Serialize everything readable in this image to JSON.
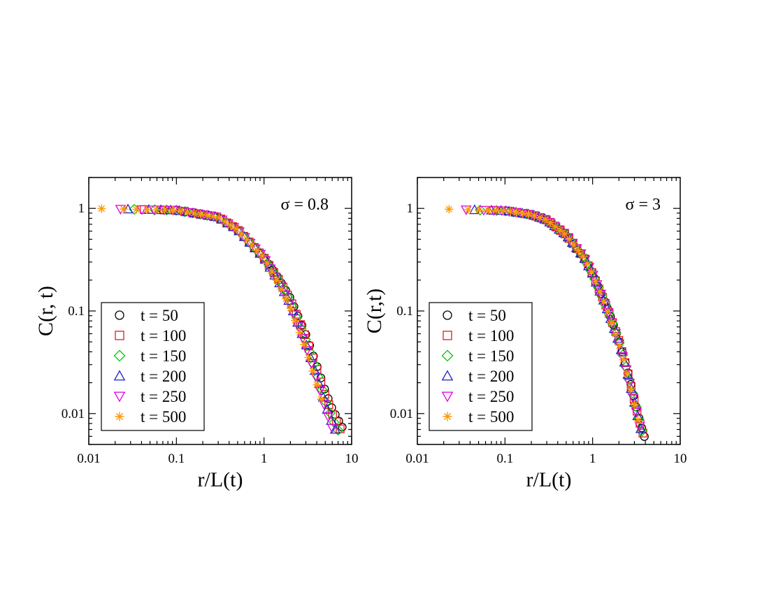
{
  "figure": {
    "panels_count": 2
  },
  "colors": {
    "t50": "#000000",
    "t100": "#e41a1c",
    "t150": "#00cc00",
    "t200": "#1f1fcc",
    "t250": "#e000e0",
    "t500": "#ff9900"
  },
  "chart_data": [
    {
      "type": "scatter",
      "title": "",
      "annotation": "σ = 0.8",
      "xlabel": "r/L(t)",
      "ylabel": "C(r, t)",
      "xscale": "log",
      "yscale": "log",
      "xlim": [
        0.01,
        10
      ],
      "ylim": [
        0.005,
        2
      ],
      "xticks": [
        {
          "value": 0.01,
          "label": "0.01"
        },
        {
          "value": 0.1,
          "label": "0.1"
        },
        {
          "value": 1,
          "label": "1"
        },
        {
          "value": 10,
          "label": "10"
        }
      ],
      "yticks": [
        {
          "value": 0.01,
          "label": "0.01"
        },
        {
          "value": 0.1,
          "label": "0.1"
        },
        {
          "value": 1,
          "label": "1"
        }
      ],
      "legend_position": "bottom-left",
      "series": [
        {
          "name": "t = 50",
          "marker": "circle",
          "color_key": "t50",
          "x0": 0.07,
          "x_end": 7.8
        },
        {
          "name": "t = 100",
          "marker": "square",
          "color_key": "t100",
          "x0": 0.043,
          "x_end": 7.4
        },
        {
          "name": "t = 150",
          "marker": "diamond",
          "color_key": "t150",
          "x0": 0.033,
          "x_end": 7.0
        },
        {
          "name": "t = 200",
          "marker": "triangle-up",
          "color_key": "t200",
          "x0": 0.028,
          "x_end": 6.5
        },
        {
          "name": "t = 250",
          "marker": "triangle-down",
          "color_key": "t250",
          "x0": 0.023,
          "x_end": 6.0
        },
        {
          "name": "t = 500",
          "marker": "star",
          "color_key": "t500",
          "x0": 0.014,
          "x_end": 4.5
        }
      ],
      "scaling_curve": {
        "x": [
          0.01,
          0.1,
          0.3,
          0.5,
          1.0,
          1.5,
          2.0,
          3.0,
          4.0,
          5.0,
          6.0,
          7.0,
          8.0
        ],
        "y": [
          1.0,
          0.96,
          0.82,
          0.62,
          0.33,
          0.19,
          0.12,
          0.05,
          0.024,
          0.013,
          0.0085,
          0.0065,
          0.0052
        ]
      }
    },
    {
      "type": "scatter",
      "title": "",
      "annotation": "σ = 3",
      "xlabel": "r/L(t)",
      "ylabel": "C(r,t)",
      "xscale": "log",
      "yscale": "log",
      "xlim": [
        0.01,
        10
      ],
      "ylim": [
        0.005,
        2
      ],
      "xticks": [
        {
          "value": 0.01,
          "label": "0.01"
        },
        {
          "value": 0.1,
          "label": "0.1"
        },
        {
          "value": 1,
          "label": "1"
        },
        {
          "value": 10,
          "label": "10"
        }
      ],
      "yticks": [
        {
          "value": 0.01,
          "label": "0.01"
        },
        {
          "value": 0.1,
          "label": "0.1"
        },
        {
          "value": 1,
          "label": "1"
        }
      ],
      "legend_position": "bottom-left",
      "series": [
        {
          "name": "t = 50",
          "marker": "circle",
          "color_key": "t50",
          "x0": 0.105,
          "x_end": 3.9
        },
        {
          "name": "t = 100",
          "marker": "square",
          "color_key": "t100",
          "x0": 0.072,
          "x_end": 3.75
        },
        {
          "name": "t = 150",
          "marker": "diamond",
          "color_key": "t150",
          "x0": 0.052,
          "x_end": 3.65
        },
        {
          "name": "t = 200",
          "marker": "triangle-up",
          "color_key": "t200",
          "x0": 0.045,
          "x_end": 3.55
        },
        {
          "name": "t = 250",
          "marker": "triangle-down",
          "color_key": "t250",
          "x0": 0.036,
          "x_end": 3.45
        },
        {
          "name": "t = 500",
          "marker": "star",
          "color_key": "t500",
          "x0": 0.023,
          "x_end": 3.3
        }
      ],
      "scaling_curve": {
        "x": [
          0.01,
          0.1,
          0.2,
          0.3,
          0.5,
          0.8,
          1.0,
          1.5,
          2.0,
          2.5,
          3.0,
          3.5,
          3.9
        ],
        "y": [
          1.0,
          0.95,
          0.87,
          0.77,
          0.55,
          0.33,
          0.23,
          0.1,
          0.05,
          0.025,
          0.013,
          0.0075,
          0.0055
        ]
      }
    }
  ]
}
